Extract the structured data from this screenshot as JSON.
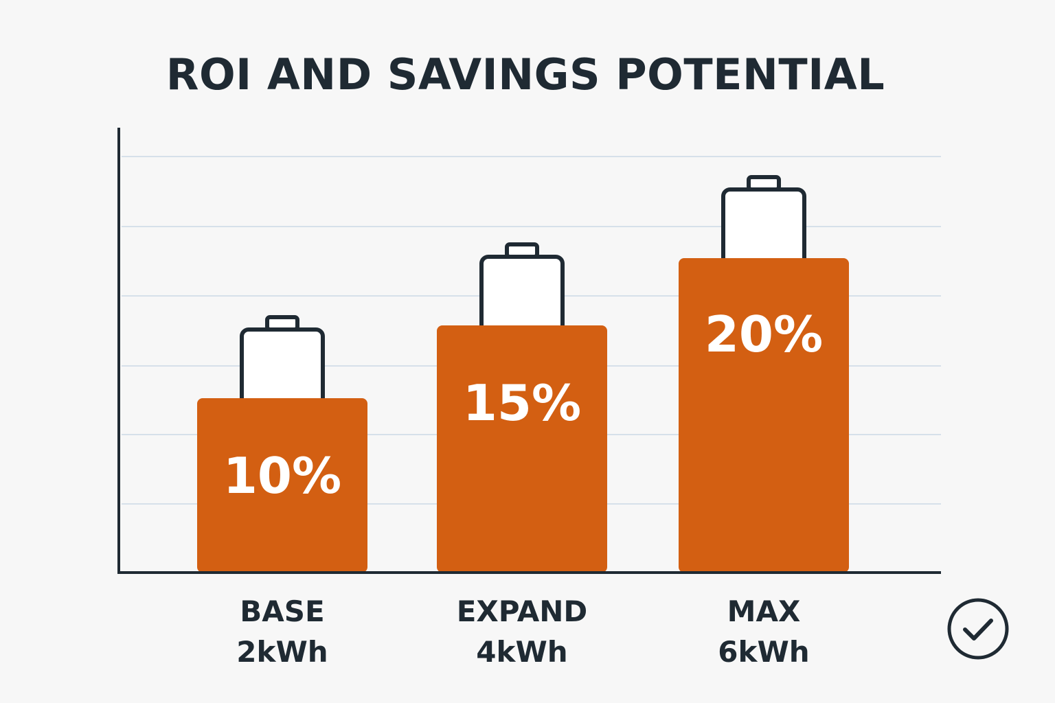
{
  "chart_data": {
    "type": "bar",
    "title": "ROI AND SAVINGS POTENTIAL",
    "categories": [
      "BASE",
      "EXPAND",
      "MAX"
    ],
    "capacities": [
      "2kWh",
      "4kWh",
      "6kWh"
    ],
    "values": [
      10,
      15,
      20
    ],
    "value_labels": [
      "10%",
      "15%",
      "20%"
    ],
    "ylim": [
      0,
      27
    ],
    "grid": true,
    "bar_color": "#d35f12",
    "icon": "battery-icon"
  },
  "badge": {
    "icon": "check-circle-icon"
  },
  "colors": {
    "text": "#1f2a33",
    "grid": "#d6e0ea",
    "axis": "#1f2a33",
    "background": "#f7f7f7"
  }
}
